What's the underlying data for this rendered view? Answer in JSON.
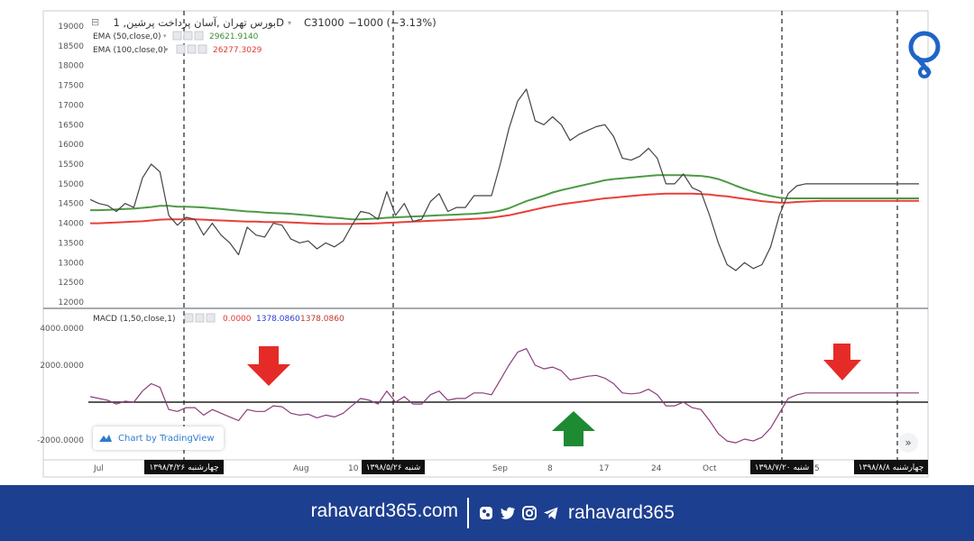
{
  "header": {
    "title": "بورس تهران ,آسان پرداخت پرشین, 1D",
    "close_label": "C31000",
    "change_label": "−1000 (−3.13%)",
    "ema50_label": "EMA (50,close,0)",
    "ema50_value": "29621.9140",
    "ema100_label": "EMA (100,close,0)",
    "ema100_value": "26277.3029"
  },
  "macd_header": {
    "label": "MACD (1,50,close,1)",
    "value1": "0.0000",
    "value2": "1378.0860",
    "value3": "1378.0860"
  },
  "price_axis": {
    "ticks": [
      "19000",
      "18500",
      "18000",
      "17500",
      "17000",
      "16500",
      "16000",
      "15500",
      "15000",
      "14500",
      "14000",
      "13500",
      "13000",
      "12500",
      "12000"
    ]
  },
  "macd_axis": {
    "ticks": [
      "4000.0000",
      "2000.0000",
      "-2000.0000"
    ]
  },
  "time_axis": {
    "labels": [
      "Jul",
      "Aug",
      "10",
      "Sep",
      "8",
      "17",
      "24",
      "Oct",
      "5"
    ],
    "date_markers": [
      "چهارشنبه ۱۳۹۸/۴/۲۶",
      "شنبه ۱۳۹۸/۵/۲۶",
      "شنبه ۱۳۹۸/۷/۲۰",
      "چهارشنبه ۱۳۹۸/۸/۸"
    ]
  },
  "badge": {
    "label": "Chart by TradingView"
  },
  "footer": {
    "site": "rahavard365.com",
    "handle": "rahavard365"
  },
  "colors": {
    "price": "#444444",
    "ema50": "#4e9a46",
    "ema100": "#e8403a",
    "macd": "#8b3d7a",
    "arrow_down": "#e52b27",
    "arrow_up": "#1e8a32",
    "footer_bg": "#1d3f8f",
    "logo": "#1f64c8"
  },
  "chart_data": [
    {
      "type": "line",
      "title": "بورس تهران ,آسان پرداخت پرشین, 1D",
      "x": [
        0,
        1,
        2,
        3,
        4,
        5,
        6,
        7,
        8,
        9,
        10,
        11,
        12,
        13,
        14,
        15,
        16,
        17,
        18,
        19,
        20,
        21,
        22,
        23,
        24,
        25,
        26,
        27,
        28,
        29,
        30,
        31,
        32,
        33,
        34,
        35,
        36,
        37,
        38,
        39,
        40,
        41,
        42,
        43,
        44,
        45,
        46,
        47,
        48,
        49,
        50,
        51,
        52,
        53,
        54,
        55,
        56,
        57,
        58,
        59,
        60,
        61,
        62,
        63,
        64,
        65,
        66,
        67,
        68,
        69,
        70,
        71,
        72,
        73,
        74,
        75,
        76,
        77,
        78,
        79,
        80,
        81,
        82,
        83,
        84,
        85,
        86,
        87,
        88,
        89,
        90,
        91,
        92,
        93,
        94,
        95
      ],
      "ylim": [
        12000,
        19000
      ],
      "series": [
        {
          "name": "Price",
          "values": [
            14600,
            14500,
            14450,
            14300,
            14500,
            14400,
            15150,
            15500,
            15300,
            14200,
            13950,
            14150,
            14100,
            13700,
            14000,
            13700,
            13500,
            13200,
            13900,
            13700,
            13650,
            14000,
            13950,
            13600,
            13500,
            13550,
            13350,
            13500,
            13400,
            13550,
            13950,
            14300,
            14250,
            14100,
            14800,
            14200,
            14500,
            14050,
            14100,
            14550,
            14750,
            14300,
            14400,
            14400,
            14700,
            14700,
            14700,
            15500,
            16400,
            17100,
            17400,
            16600,
            16500,
            16700,
            16500,
            16100,
            16250,
            16350,
            16450,
            16500,
            16200,
            15650,
            15600,
            15700,
            15900,
            15650,
            15000,
            15000,
            15250,
            14900,
            14800,
            14200,
            13500,
            12950,
            12800,
            13000,
            12850,
            12950,
            13400,
            14200,
            14750,
            14950,
            15000,
            15000,
            15000,
            15000,
            15000,
            15000,
            15000,
            15000,
            15000,
            15000,
            15000,
            15000,
            15000,
            15000
          ]
        },
        {
          "name": "EMA (50,close,0)",
          "values": [
            14330,
            14330,
            14340,
            14350,
            14360,
            14370,
            14390,
            14410,
            14440,
            14440,
            14420,
            14420,
            14410,
            14400,
            14380,
            14360,
            14340,
            14320,
            14300,
            14290,
            14270,
            14260,
            14250,
            14240,
            14220,
            14200,
            14180,
            14160,
            14140,
            14120,
            14100,
            14100,
            14110,
            14120,
            14140,
            14150,
            14160,
            14170,
            14180,
            14190,
            14200,
            14210,
            14220,
            14230,
            14240,
            14260,
            14280,
            14320,
            14380,
            14470,
            14560,
            14630,
            14700,
            14780,
            14840,
            14890,
            14940,
            14990,
            15040,
            15090,
            15120,
            15140,
            15160,
            15180,
            15200,
            15220,
            15220,
            15220,
            15220,
            15210,
            15200,
            15170,
            15120,
            15040,
            14950,
            14870,
            14800,
            14740,
            14690,
            14650,
            14630,
            14630,
            14630,
            14630,
            14630,
            14630,
            14630,
            14630,
            14630,
            14630,
            14630,
            14630,
            14630,
            14630,
            14630,
            14630
          ]
        },
        {
          "name": "EMA (100,close,0)",
          "values": [
            14000,
            14000,
            14010,
            14020,
            14030,
            14040,
            14050,
            14070,
            14090,
            14100,
            14100,
            14100,
            14100,
            14090,
            14080,
            14070,
            14060,
            14050,
            14040,
            14040,
            14030,
            14030,
            14030,
            14020,
            14010,
            14000,
            13990,
            13980,
            13980,
            13980,
            13980,
            13990,
            13990,
            14000,
            14010,
            14020,
            14030,
            14040,
            14050,
            14060,
            14070,
            14080,
            14090,
            14100,
            14110,
            14120,
            14140,
            14170,
            14200,
            14250,
            14300,
            14350,
            14400,
            14440,
            14480,
            14510,
            14540,
            14570,
            14600,
            14630,
            14650,
            14670,
            14690,
            14710,
            14730,
            14740,
            14750,
            14750,
            14750,
            14750,
            14740,
            14730,
            14700,
            14680,
            14650,
            14620,
            14590,
            14560,
            14540,
            14520,
            14520,
            14540,
            14550,
            14560,
            14570,
            14570,
            14570,
            14570,
            14570,
            14570,
            14570,
            14570,
            14570,
            14570,
            14570,
            14570
          ]
        }
      ]
    },
    {
      "type": "line",
      "ylim": [
        -2700,
        4600
      ],
      "series": [
        {
          "name": "MACD (1,50,close,1)",
          "values": [
            300,
            200,
            100,
            -100,
            50,
            0,
            600,
            1000,
            800,
            -400,
            -500,
            -300,
            -300,
            -700,
            -400,
            -600,
            -800,
            -1000,
            -400,
            -500,
            -500,
            -200,
            -250,
            -600,
            -700,
            -650,
            -850,
            -700,
            -800,
            -600,
            -200,
            200,
            100,
            -100,
            600,
            0,
            300,
            -100,
            -100,
            400,
            600,
            100,
            200,
            200,
            500,
            500,
            400,
            1200,
            2000,
            2700,
            2900,
            2000,
            1800,
            1900,
            1700,
            1200,
            1300,
            1400,
            1450,
            1300,
            1000,
            500,
            450,
            500,
            700,
            400,
            -200,
            -200,
            0,
            -300,
            -400,
            -1000,
            -1700,
            -2100,
            -2200,
            -2000,
            -2100,
            -1900,
            -1400,
            -600,
            200,
            400,
            500,
            500,
            500,
            500,
            500,
            500,
            500,
            500,
            500,
            500,
            500,
            500,
            500,
            500
          ]
        }
      ]
    }
  ]
}
